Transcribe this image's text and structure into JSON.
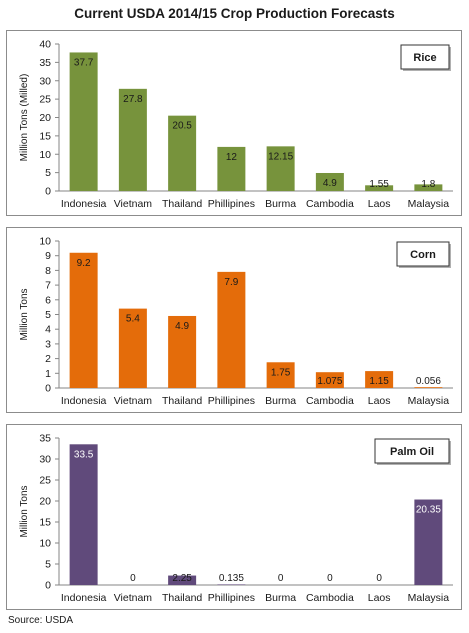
{
  "title": "Current USDA 2014/15  Crop Production Forecasts",
  "source": "Source: USDA",
  "chart_data": [
    {
      "type": "bar",
      "legend": "Rice",
      "ylabel": "Million Tons (Milled)",
      "categories": [
        "Indonesia",
        "Vietnam",
        "Thailand",
        "Phillipines",
        "Burma",
        "Cambodia",
        "Laos",
        "Malaysia"
      ],
      "values": [
        37.7,
        27.8,
        20.5,
        12,
        12.15,
        4.9,
        1.55,
        1.8
      ],
      "value_labels": [
        "37.7",
        "27.8",
        "20.5",
        "12",
        "12.15",
        "4.9",
        "1.55",
        "1.8"
      ],
      "ylim": [
        0,
        40
      ],
      "yticks": [
        0,
        5,
        10,
        15,
        20,
        25,
        30,
        35,
        40
      ],
      "color": "#77933c",
      "label_color": "#1a1a1a"
    },
    {
      "type": "bar",
      "legend": "Corn",
      "ylabel": "Million Tons",
      "categories": [
        "Indonesia",
        "Vietnam",
        "Thailand",
        "Phillipines",
        "Burma",
        "Cambodia",
        "Laos",
        "Malaysia"
      ],
      "values": [
        9.2,
        5.4,
        4.9,
        7.9,
        1.75,
        1.075,
        1.15,
        0.056
      ],
      "value_labels": [
        "9.2",
        "5.4",
        "4.9",
        "7.9",
        "1.75",
        "1.075",
        "1.15",
        "0.056"
      ],
      "ylim": [
        0,
        10
      ],
      "yticks": [
        0,
        1,
        2,
        3,
        4,
        5,
        6,
        7,
        8,
        9,
        10
      ],
      "color": "#e46c0a",
      "label_color": "#1a1a1a"
    },
    {
      "type": "bar",
      "legend": "Palm Oil",
      "ylabel": "Million Tons",
      "categories": [
        "Indonesia",
        "Vietnam",
        "Thailand",
        "Phillipines",
        "Burma",
        "Cambodia",
        "Laos",
        "Malaysia"
      ],
      "values": [
        33.5,
        0,
        2.25,
        0.135,
        0,
        0,
        0,
        20.35
      ],
      "value_labels": [
        "33.5",
        "0",
        "2.25",
        "0.135",
        "0",
        "0",
        "0",
        "20.35"
      ],
      "ylim": [
        0,
        35
      ],
      "yticks": [
        0,
        5,
        10,
        15,
        20,
        25,
        30,
        35
      ],
      "color": "#604a7b",
      "label_color": "#ffffff"
    }
  ]
}
